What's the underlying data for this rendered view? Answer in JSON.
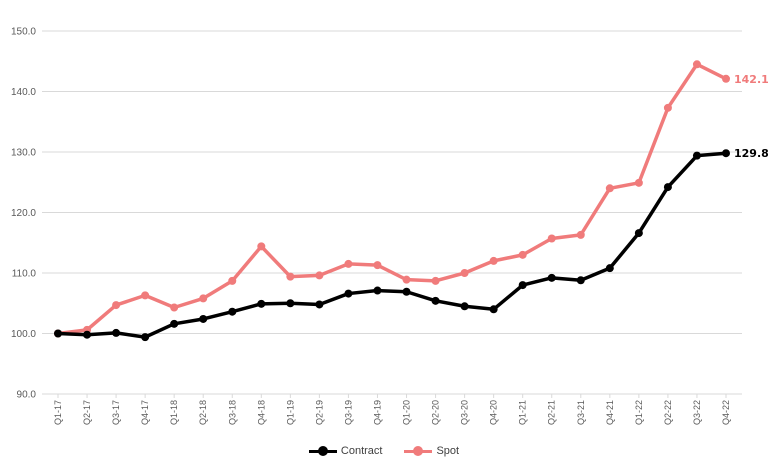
{
  "chart_data": {
    "type": "line",
    "categories": [
      "Q1-17",
      "Q2-17",
      "Q3-17",
      "Q4-17",
      "Q1-18",
      "Q2-18",
      "Q3-18",
      "Q4-18",
      "Q1-19",
      "Q2-19",
      "Q3-19",
      "Q4-19",
      "Q1-20",
      "Q2-20",
      "Q3-20",
      "Q4-20",
      "Q1-21",
      "Q2-21",
      "Q3-21",
      "Q4-21",
      "Q1-22",
      "Q2-22",
      "Q3-22",
      "Q4-22"
    ],
    "series": [
      {
        "name": "Contract",
        "color": "#000000",
        "values": [
          100.0,
          99.8,
          100.1,
          99.4,
          101.6,
          102.4,
          103.6,
          104.9,
          105.0,
          104.8,
          106.6,
          107.1,
          106.9,
          105.4,
          104.5,
          104.0,
          108.0,
          109.2,
          108.8,
          110.8,
          116.6,
          124.2,
          129.4,
          129.8
        ],
        "end_label": "129.8"
      },
      {
        "name": "Spot",
        "color": "#f07b7b",
        "values": [
          100.0,
          100.6,
          104.7,
          106.3,
          104.3,
          105.8,
          108.7,
          114.4,
          109.4,
          109.6,
          111.5,
          111.3,
          108.9,
          108.7,
          110.0,
          112.0,
          113.0,
          115.7,
          116.3,
          124.0,
          124.9,
          137.3,
          144.5,
          142.1
        ],
        "end_label": "142.1"
      }
    ],
    "yticks": [
      "90.0",
      "100.0",
      "110.0",
      "120.0",
      "130.0",
      "140.0",
      "150.0"
    ],
    "ylim": [
      90,
      150
    ],
    "grid": true,
    "legend_position": "bottom"
  },
  "legend": {
    "contract": "Contract",
    "spot": "Spot"
  }
}
